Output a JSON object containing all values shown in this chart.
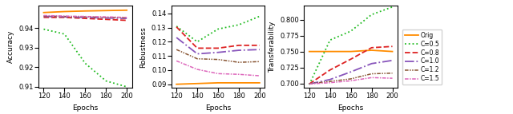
{
  "epochs": [
    120,
    140,
    160,
    180,
    200
  ],
  "acc_orig": [
    0.948,
    0.9485,
    0.9488,
    0.949,
    0.9492
  ],
  "acc_c05": [
    0.9395,
    0.937,
    0.922,
    0.913,
    0.91
  ],
  "acc_c08": [
    0.9455,
    0.9455,
    0.945,
    0.9445,
    0.944
  ],
  "acc_c10": [
    0.946,
    0.9458,
    0.9455,
    0.9452,
    0.945
  ],
  "acc_c12": [
    0.9462,
    0.946,
    0.9458,
    0.9455,
    0.9453
  ],
  "acc_c15": [
    0.9465,
    0.9462,
    0.946,
    0.9458,
    0.9455
  ],
  "rob_orig": [
    0.09,
    0.0905,
    0.091,
    0.091,
    0.091
  ],
  "rob_c05": [
    0.131,
    0.12,
    0.129,
    0.132,
    0.138
  ],
  "rob_c08": [
    0.1305,
    0.1155,
    0.1155,
    0.1175,
    0.1175
  ],
  "rob_c10": [
    0.123,
    0.1115,
    0.1125,
    0.114,
    0.1145
  ],
  "rob_c12": [
    0.1145,
    0.108,
    0.1075,
    0.1055,
    0.106
  ],
  "rob_c15": [
    0.1065,
    0.1005,
    0.0975,
    0.097,
    0.096
  ],
  "tra_orig": [
    0.75,
    0.75,
    0.75,
    0.752,
    0.75
  ],
  "tra_c05": [
    0.698,
    0.768,
    0.782,
    0.808,
    0.82
  ],
  "tra_c08": [
    0.699,
    0.721,
    0.738,
    0.756,
    0.758
  ],
  "tra_c10": [
    0.699,
    0.706,
    0.718,
    0.731,
    0.736
  ],
  "tra_c12": [
    0.6995,
    0.703,
    0.707,
    0.715,
    0.716
  ],
  "tra_c15": [
    0.699,
    0.701,
    0.704,
    0.709,
    0.708
  ],
  "color_orig": "#FF8C00",
  "color_c05": "#22BB22",
  "color_c08": "#DD2222",
  "color_c10": "#8855BB",
  "color_c12": "#885533",
  "color_c15": "#DD66BB",
  "legend_labels": [
    "Orig",
    "C=0.5",
    "C=0.8",
    "C=1.0",
    "C=1.2",
    "C=1.5"
  ],
  "acc_ylim": [
    0.9095,
    0.9515
  ],
  "rob_ylim": [
    0.0875,
    0.1455
  ],
  "tra_ylim": [
    0.693,
    0.822
  ],
  "acc_yticks": [
    0.91,
    0.92,
    0.93,
    0.94
  ],
  "rob_yticks": [
    0.09,
    0.1,
    0.11,
    0.12,
    0.13,
    0.14
  ],
  "tra_yticks": [
    0.7,
    0.725,
    0.75,
    0.775,
    0.8
  ],
  "xlabel": "Epochs",
  "acc_ylabel": "Accuracy",
  "rob_ylabel": "Robustness",
  "tra_ylabel": "Transferability"
}
